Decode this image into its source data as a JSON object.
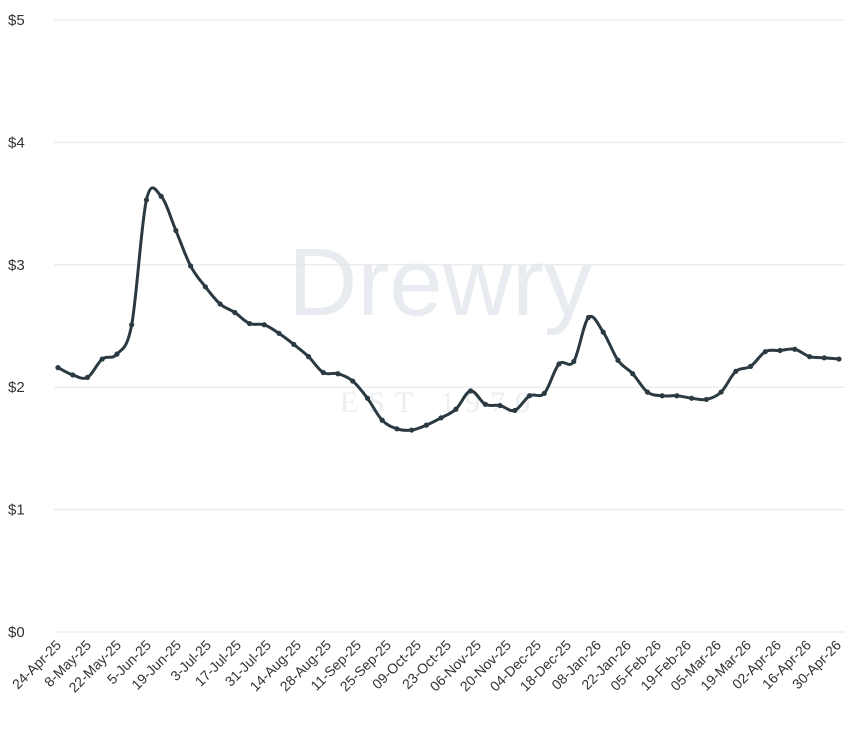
{
  "chart_data": {
    "type": "line",
    "title": "",
    "xlabel": "",
    "ylabel": "",
    "ylim": [
      0,
      5
    ],
    "y_ticks": [
      "$0",
      "$1",
      "$2",
      "$3",
      "$4",
      "$5"
    ],
    "x_tick_labels": [
      "24-Apr-25",
      "8-May-25",
      "22-May-25",
      "5-Jun-25",
      "19-Jun-25",
      "3-Jul-25",
      "17-Jul-25",
      "31-Jul-25",
      "14-Aug-25",
      "28-Aug-25",
      "11-Sep-25",
      "25-Sep-25",
      "09-Oct-25",
      "23-Oct-25",
      "06-Nov-25",
      "20-Nov-25",
      "04-Dec-25",
      "18-Dec-25",
      "08-Jan-26",
      "22-Jan-26",
      "05-Feb-26",
      "19-Feb-26",
      "05-Mar-26",
      "19-Mar-26",
      "02-Apr-26",
      "16-Apr-26",
      "30-Apr-26"
    ],
    "grid": true,
    "series": [
      {
        "color": "#2b3a42",
        "values": [
          2.16,
          2.1,
          2.08,
          2.23,
          2.27,
          2.51,
          3.53,
          3.56,
          3.28,
          2.99,
          2.82,
          2.68,
          2.61,
          2.52,
          2.51,
          2.44,
          2.35,
          2.25,
          2.12,
          2.11,
          2.05,
          1.91,
          1.73,
          1.66,
          1.65,
          1.69,
          1.75,
          1.82,
          1.97,
          1.86,
          1.85,
          1.81,
          1.93,
          1.95,
          2.19,
          2.21,
          2.57,
          2.45,
          2.22,
          2.11,
          1.96,
          1.93,
          1.93,
          1.91,
          1.9,
          1.96,
          2.13,
          2.17,
          2.29,
          2.3,
          2.31,
          2.25,
          2.24,
          2.23
        ]
      }
    ]
  },
  "watermark": {
    "text": "Drewry",
    "subtext": "EST 1970"
  }
}
